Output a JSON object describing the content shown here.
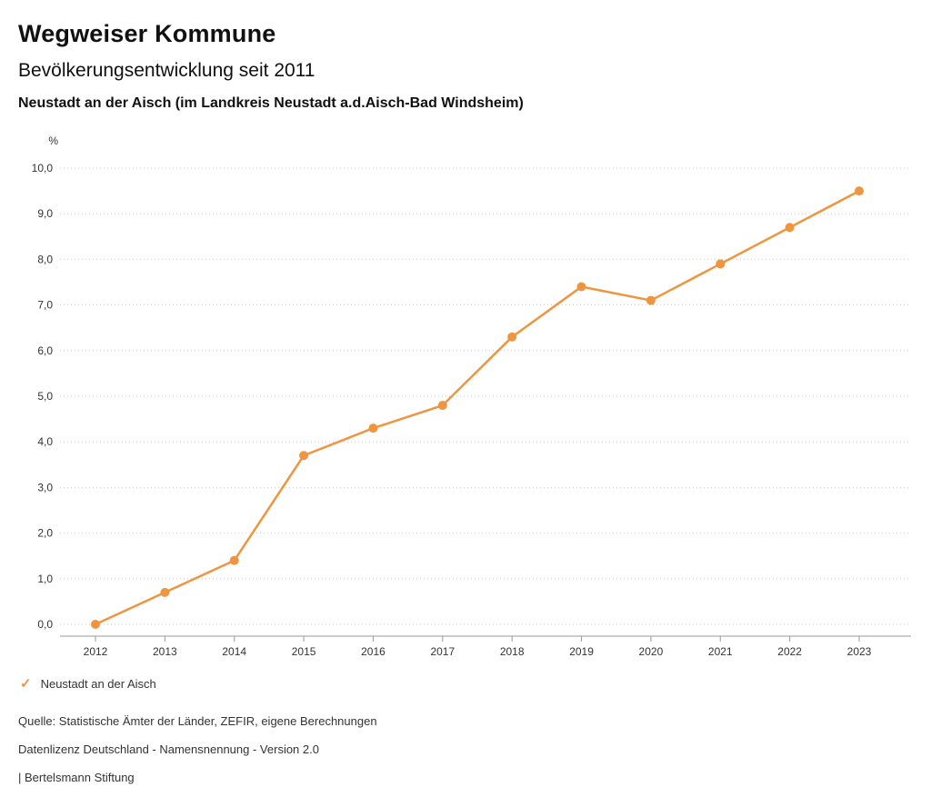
{
  "header": {
    "title": "Wegweiser Kommune",
    "subtitle": "Bevölkerungsentwicklung seit 2011",
    "region": "Neustadt an der Aisch (im Landkreis Neustadt a.d.Aisch-Bad Windsheim)"
  },
  "legend": {
    "label": "Neustadt an der Aisch",
    "check_icon": "✓"
  },
  "footer": {
    "source": "Quelle: Statistische Ämter der Länder, ZEFIR, eigene Berechnungen",
    "license": "Datenlizenz Deutschland - Namensnennung - Version 2.0",
    "attribution": "| Bertelsmann Stiftung"
  },
  "chart_data": {
    "type": "line",
    "title": "Bevölkerungsentwicklung seit 2011",
    "subtitle": "Neustadt an der Aisch (im Landkreis Neustadt a.d.Aisch-Bad Windsheim)",
    "unit": "%",
    "xlabel": "",
    "ylabel": "%",
    "categories": [
      "2012",
      "2013",
      "2014",
      "2015",
      "2016",
      "2017",
      "2018",
      "2019",
      "2020",
      "2021",
      "2022",
      "2023"
    ],
    "series": [
      {
        "name": "Neustadt an der Aisch",
        "values": [
          0.0,
          0.7,
          1.4,
          3.7,
          4.3,
          4.8,
          6.3,
          7.4,
          7.1,
          7.9,
          8.7,
          9.5
        ],
        "color": "#f0953f"
      }
    ],
    "ylim": [
      0,
      10
    ],
    "ytick_step": 1,
    "ytick_format": "german-decimal-one-place",
    "grid": "horizontal-dotted",
    "legend_position": "bottom-left",
    "colors": {
      "line": "#f0953f",
      "grid": "#cccccc",
      "axis": "#999999",
      "tick_text": "#333333"
    }
  }
}
